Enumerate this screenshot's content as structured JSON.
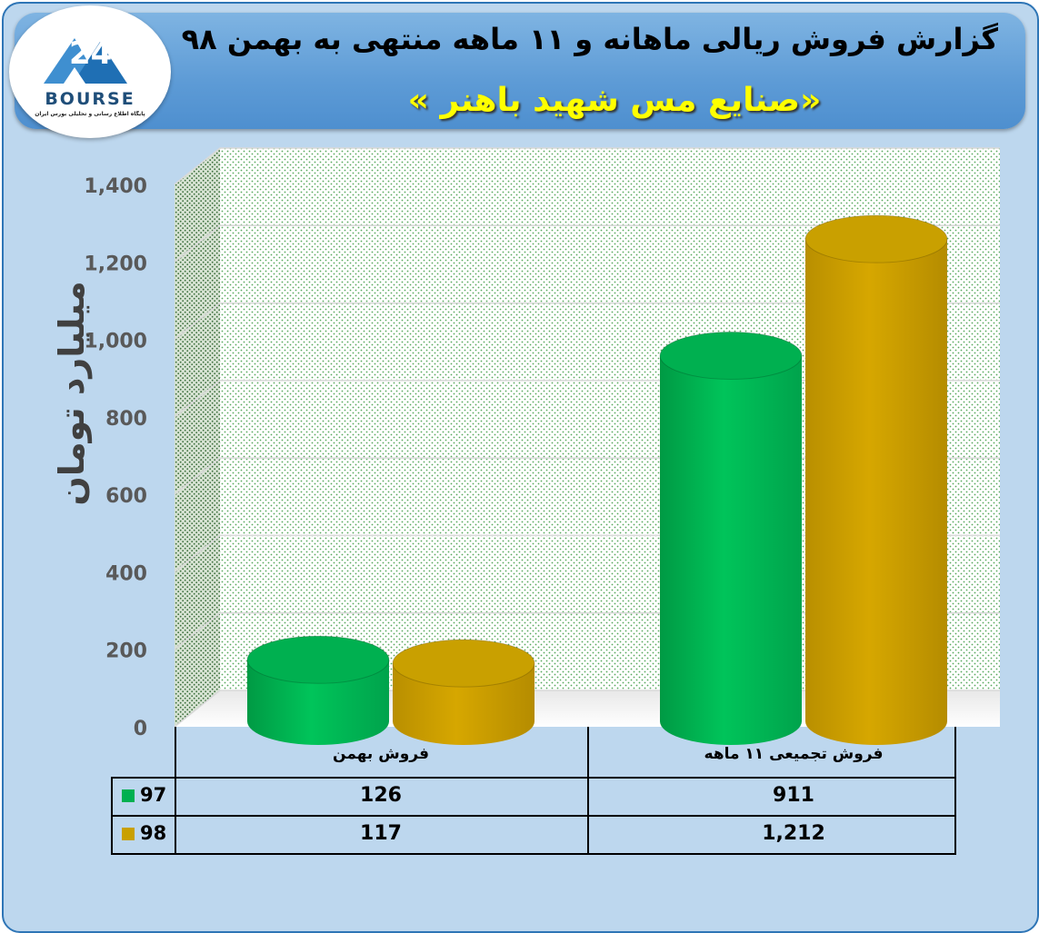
{
  "header": {
    "title": "گزارش فروش ریالی ماهانه و ۱۱ ماهه منتهی به بهمن ۹۸",
    "subtitle": "«صنایع مس شهید باهنر »"
  },
  "logo": {
    "word": "BOURSE",
    "caption": "پایگاه اطلاع رسانی و تحلیلی بورس ایران"
  },
  "colors": {
    "series_97": "#00b050",
    "series_98": "#c9a000"
  },
  "chart_data": {
    "type": "bar",
    "title": "",
    "ylabel": "میلیارد تومان",
    "xlabel": "",
    "ylim": [
      0,
      1400
    ],
    "yticks": [
      "0",
      "200",
      "400",
      "600",
      "800",
      "1,000",
      "1,200",
      "1,400"
    ],
    "grid": true,
    "categories": [
      "فروش بهمن",
      "فروش تجمیعی ۱۱ ماهه"
    ],
    "series": [
      {
        "name": "97",
        "values": [
          126,
          911
        ],
        "labels": [
          "126",
          "911"
        ]
      },
      {
        "name": "98",
        "values": [
          117,
          1212
        ],
        "labels": [
          "117",
          "1,212"
        ]
      }
    ],
    "legend": "table-left"
  }
}
